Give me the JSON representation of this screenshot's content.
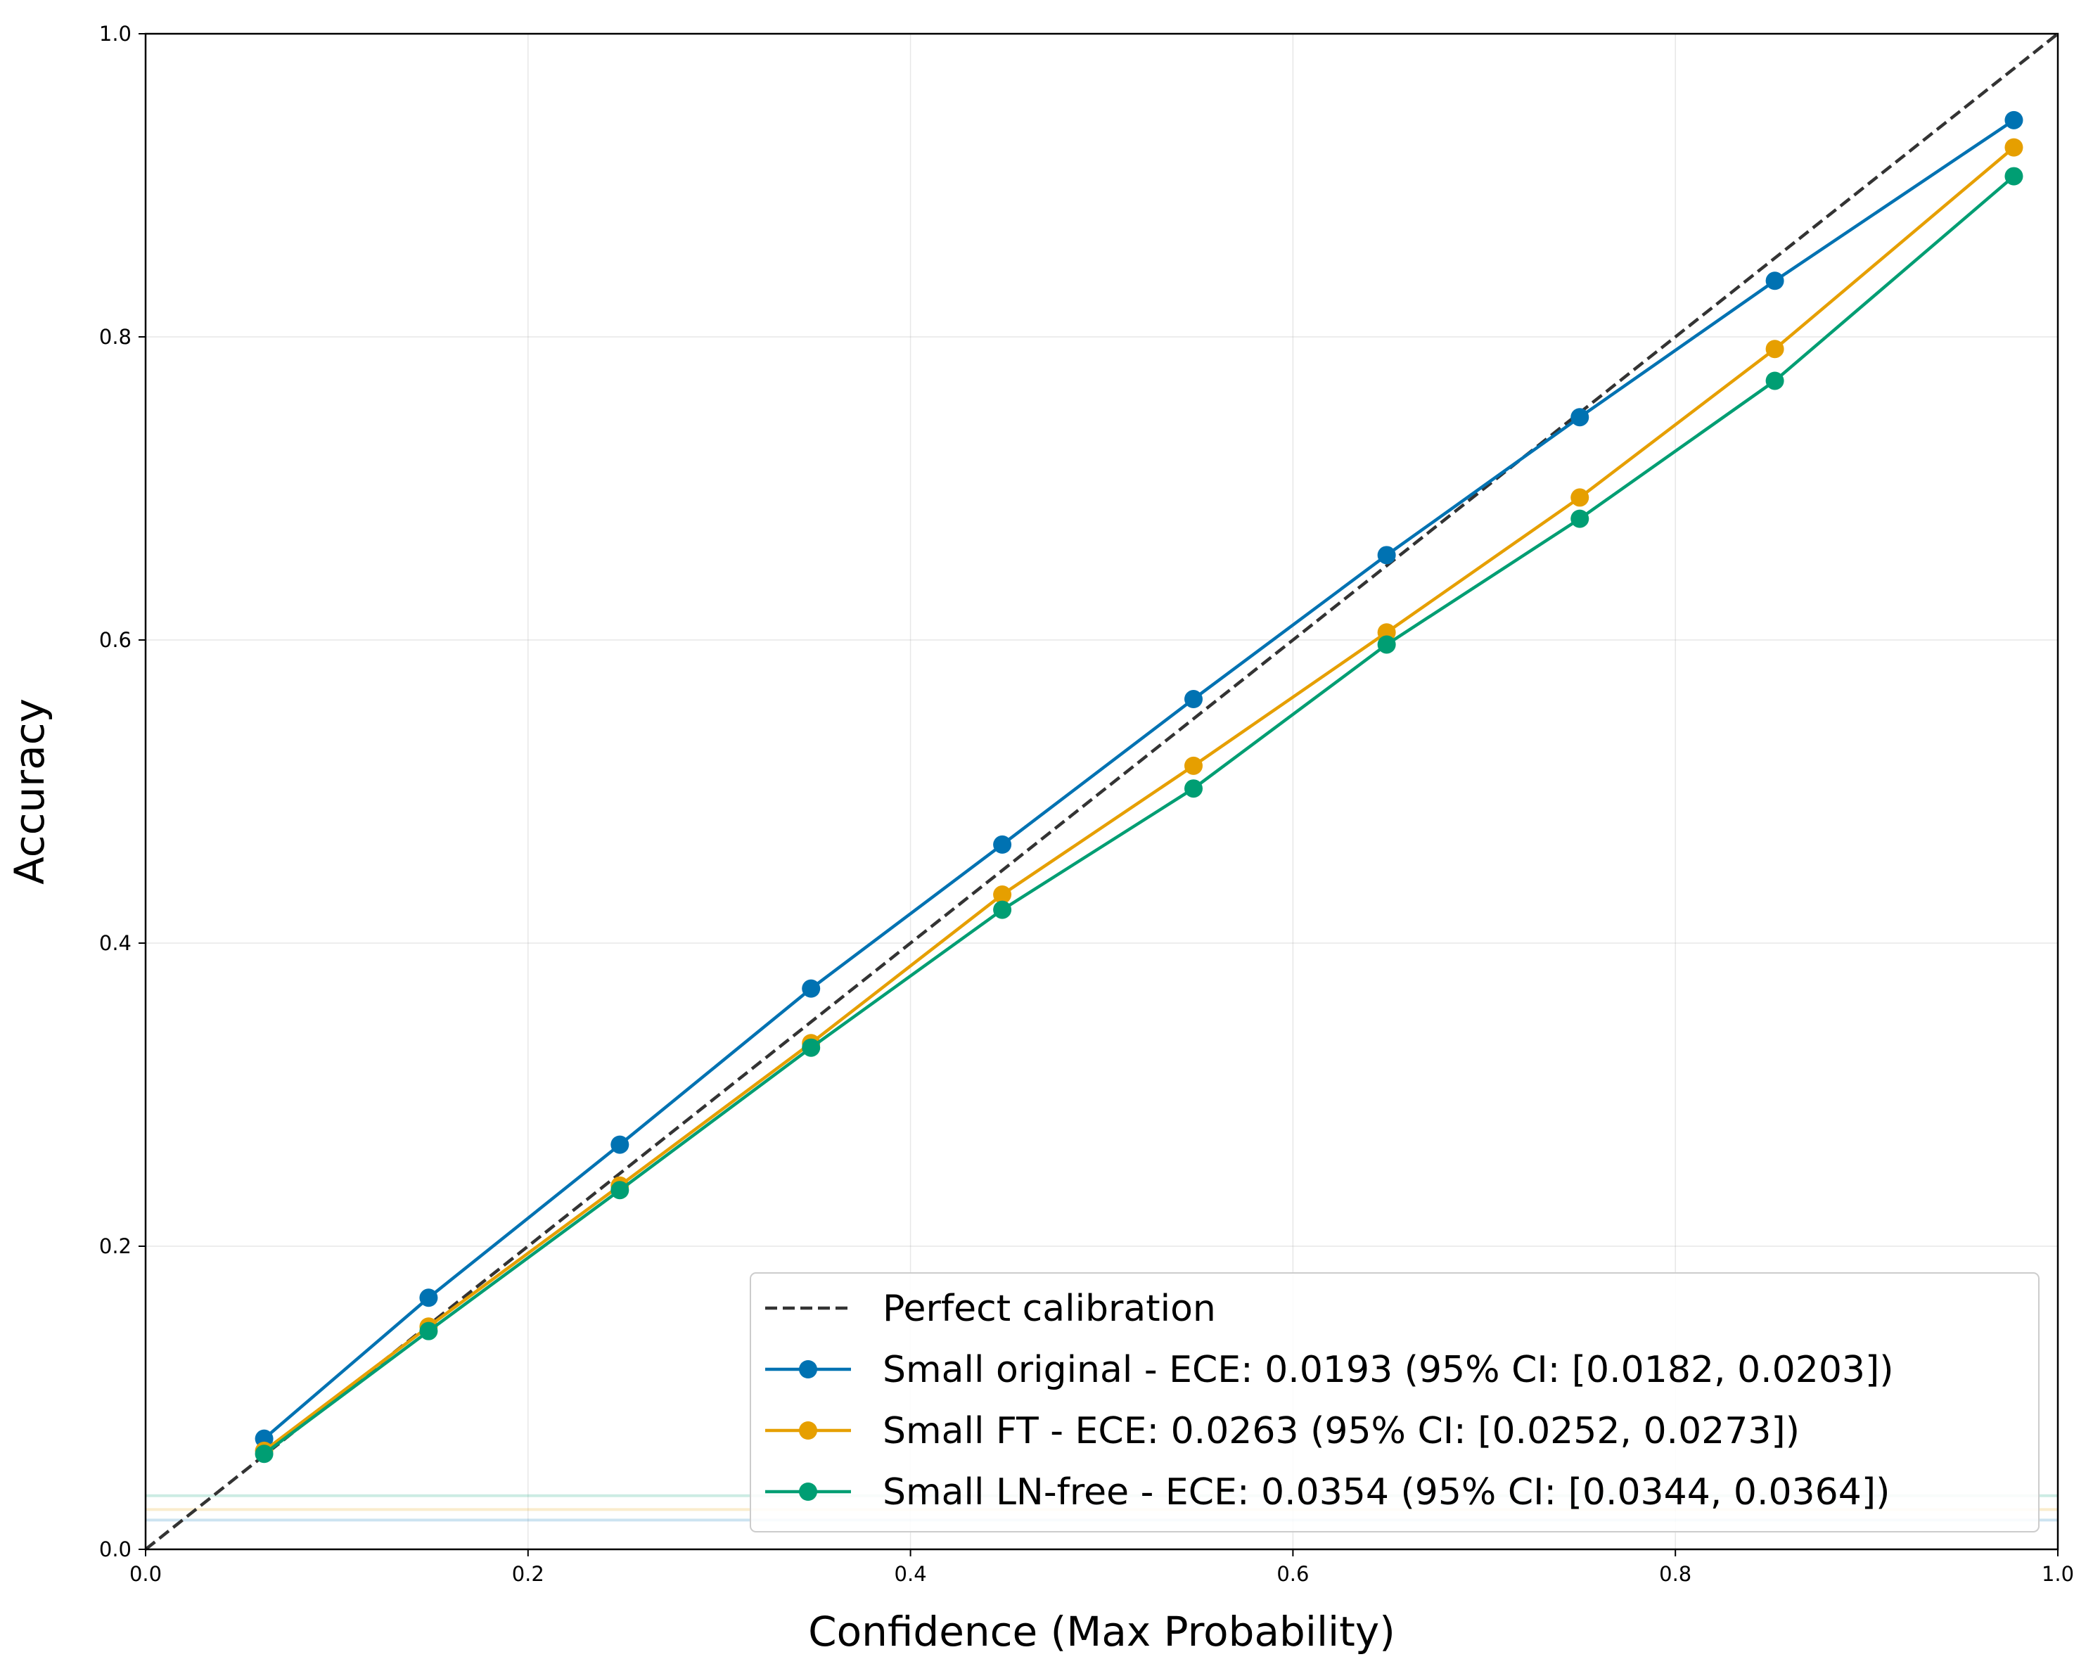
{
  "chart_data": {
    "type": "line",
    "xlabel": "Confidence (Max Probability)",
    "ylabel": "Accuracy",
    "xlim": [
      0.0,
      1.0
    ],
    "ylim": [
      0.0,
      1.0
    ],
    "xticks": [
      "0.0",
      "0.2",
      "0.4",
      "0.6",
      "0.8",
      "1.0"
    ],
    "yticks": [
      "0.0",
      "0.2",
      "0.4",
      "0.6",
      "0.8",
      "1.0"
    ],
    "grid": true,
    "legend_position": "lower-right",
    "reference_line": {
      "name": "Perfect calibration",
      "x": [
        0,
        1
      ],
      "y": [
        0,
        1
      ],
      "color": "#333333",
      "style": "dashed"
    },
    "series": [
      {
        "name": "Small original - ECE: 0.0193 (95% CI: [0.0182, 0.0203])",
        "color": "#0072B2",
        "ece": 0.0193,
        "x": [
          0.062,
          0.148,
          0.248,
          0.348,
          0.448,
          0.548,
          0.649,
          0.75,
          0.852,
          0.977
        ],
        "y": [
          0.073,
          0.166,
          0.267,
          0.37,
          0.465,
          0.561,
          0.656,
          0.747,
          0.837,
          0.943
        ]
      },
      {
        "name": "Small FT - ECE: 0.0263 (95% CI: [0.0252, 0.0273])",
        "color": "#E69F00",
        "ece": 0.0263,
        "x": [
          0.062,
          0.148,
          0.248,
          0.348,
          0.448,
          0.548,
          0.649,
          0.75,
          0.852,
          0.977
        ],
        "y": [
          0.065,
          0.147,
          0.24,
          0.334,
          0.432,
          0.517,
          0.605,
          0.694,
          0.792,
          0.925
        ]
      },
      {
        "name": "Small LN-free - ECE: 0.0354 (95% CI: [0.0344, 0.0364])",
        "color": "#009E73",
        "ece": 0.0354,
        "x": [
          0.062,
          0.148,
          0.248,
          0.348,
          0.448,
          0.548,
          0.649,
          0.75,
          0.852,
          0.977
        ],
        "y": [
          0.063,
          0.144,
          0.237,
          0.331,
          0.422,
          0.502,
          0.597,
          0.68,
          0.771,
          0.906
        ]
      }
    ]
  }
}
